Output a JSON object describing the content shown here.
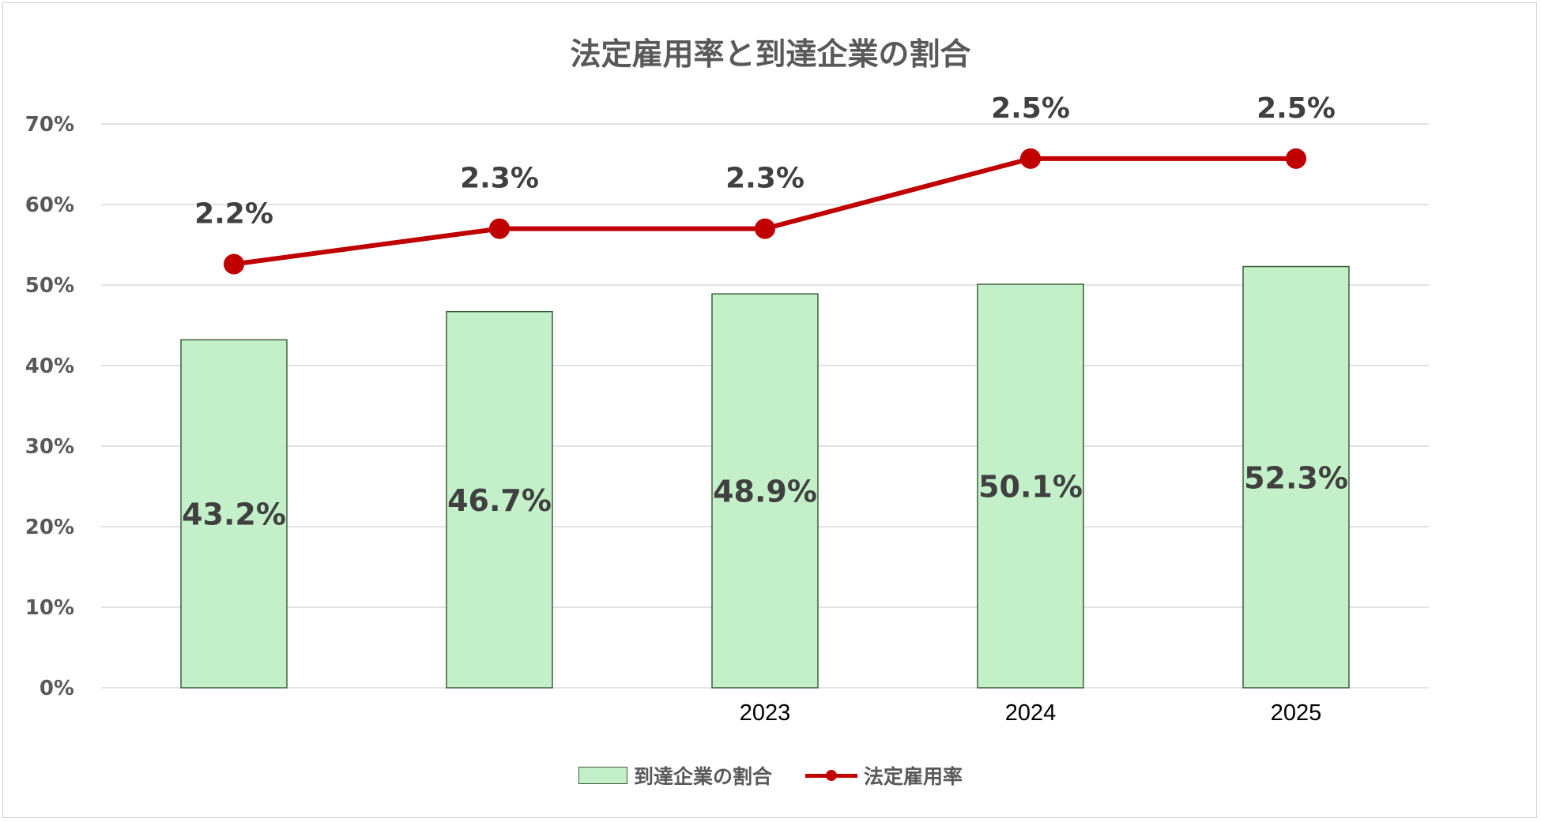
{
  "chart_data": {
    "type": "bar",
    "title": "法定雇用率と到達企業の割合",
    "categories": [
      "",
      "",
      "2023",
      "2024",
      "2025"
    ],
    "y_axis": {
      "min": 0,
      "max": 0.7,
      "step": 0.1,
      "tick_labels": [
        "0%",
        "10%",
        "20%",
        "30%",
        "40%",
        "50%",
        "60%",
        "70%"
      ]
    },
    "grid": true,
    "legend_position": "bottom",
    "series": [
      {
        "name": "到達企業の割合",
        "type": "bar",
        "color": "#c3f0c8",
        "border_color": "#3b5e3b",
        "values": [
          0.432,
          0.467,
          0.489,
          0.501,
          0.523
        ],
        "data_labels": [
          "43.2%",
          "46.7%",
          "48.9%",
          "50.1%",
          "52.3%"
        ]
      },
      {
        "name": "法定雇用率",
        "type": "line",
        "color": "#c00000",
        "plotted_values": [
          0.526,
          0.57,
          0.57,
          0.657,
          0.657
        ],
        "values": [
          0.022,
          0.023,
          0.023,
          0.025,
          0.025
        ],
        "data_labels": [
          "2.2%",
          "2.3%",
          "2.3%",
          "2.5%",
          "2.5%"
        ]
      }
    ],
    "colors": {
      "axis_text": "#595959",
      "data_label": "#404040",
      "gridline": "#d9d9d9",
      "category_text": "#000000"
    }
  }
}
